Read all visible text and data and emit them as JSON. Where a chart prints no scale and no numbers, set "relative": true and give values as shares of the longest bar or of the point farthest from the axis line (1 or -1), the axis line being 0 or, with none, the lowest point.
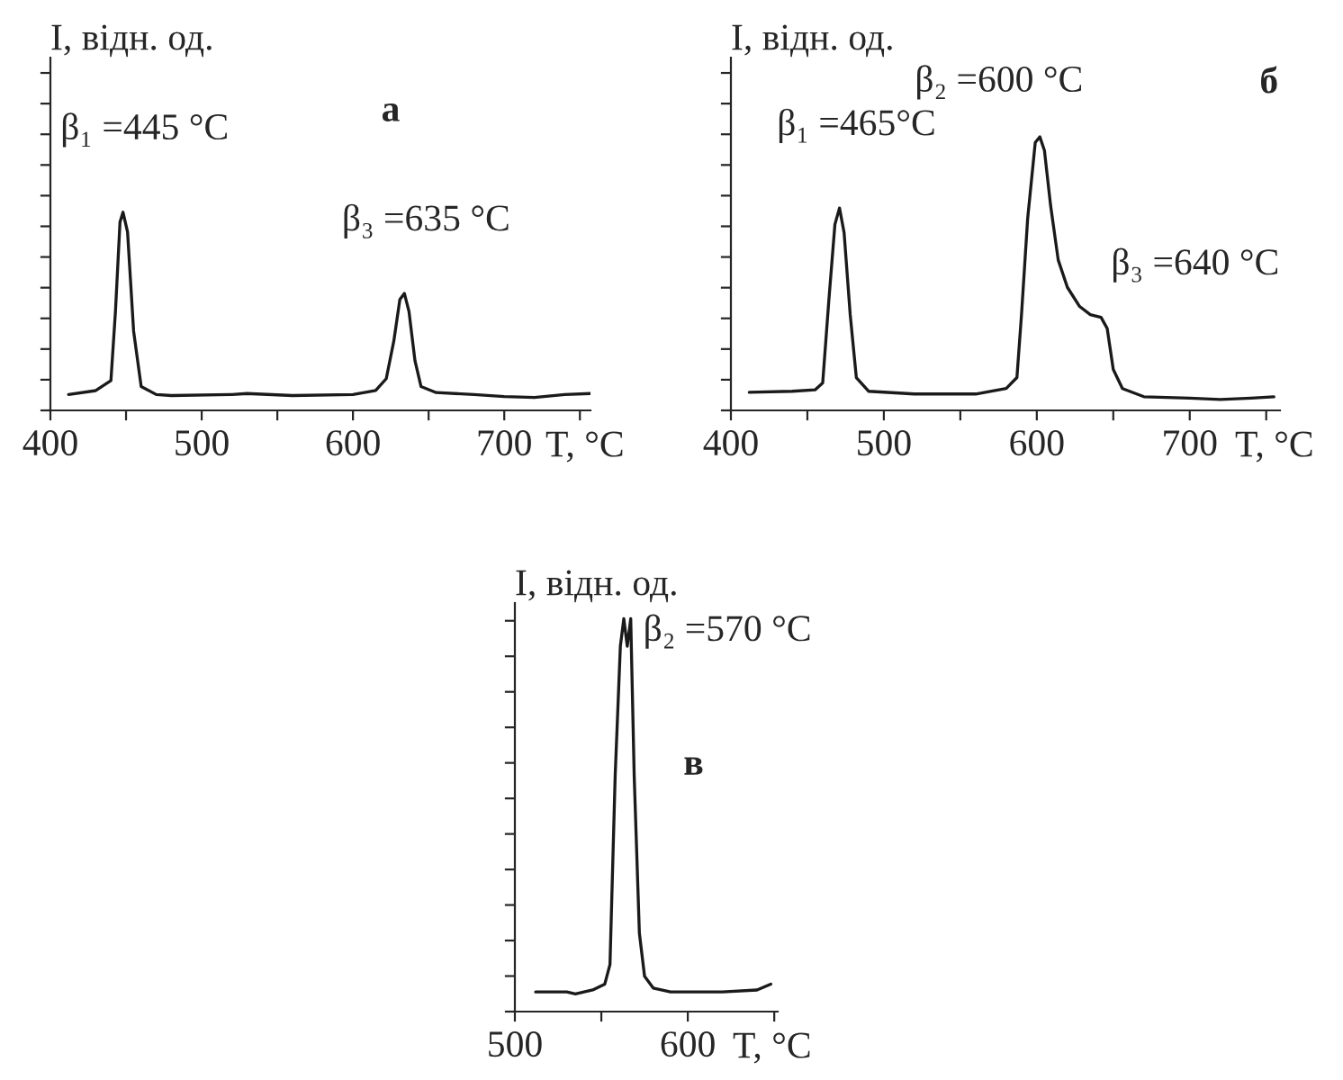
{
  "chart_data": [
    {
      "type": "line",
      "title": "а",
      "ylabel": "I, відн. од.",
      "xlabel": "T, °C",
      "relative": true,
      "xlim": [
        400,
        757
      ],
      "xticks": [
        400,
        {
          "value": 450,
          "label": null
        },
        500,
        {
          "value": 550,
          "label": null
        },
        600,
        {
          "value": 650,
          "label": null
        },
        700,
        {
          "value": 750,
          "label": null
        }
      ],
      "grid": false,
      "legend": false,
      "series": [
        {
          "color": "#1a1a1a",
          "x": [
            412,
            430,
            440,
            443,
            446,
            448,
            451,
            455,
            460,
            470,
            480,
            520,
            530,
            560,
            600,
            615,
            622,
            627,
            631,
            634,
            637,
            641,
            645,
            655,
            680,
            700,
            720,
            740,
            757
          ],
          "values": [
            0.08,
            0.1,
            0.15,
            0.5,
            0.95,
            1.0,
            0.9,
            0.4,
            0.12,
            0.08,
            0.075,
            0.08,
            0.085,
            0.075,
            0.08,
            0.1,
            0.16,
            0.35,
            0.56,
            0.59,
            0.5,
            0.25,
            0.12,
            0.09,
            0.08,
            0.07,
            0.065,
            0.08,
            0.085
          ]
        }
      ],
      "annotations": [
        {
          "text": "β₁ =445 °C",
          "x": 448,
          "y": 1.0
        },
        {
          "text": "β₃ =635 °C",
          "x": 634,
          "y": 0.59
        }
      ]
    },
    {
      "type": "line",
      "title": "б",
      "ylabel": "I, відн. од.",
      "xlabel": "T, °C",
      "relative": true,
      "xlim": [
        400,
        759
      ],
      "xticks": [
        400,
        {
          "value": 450,
          "label": null
        },
        500,
        {
          "value": 550,
          "label": null
        },
        600,
        {
          "value": 650,
          "label": null
        },
        700,
        {
          "value": 750,
          "label": null
        }
      ],
      "grid": false,
      "legend": false,
      "series": [
        {
          "color": "#1a1a1a",
          "x": [
            412,
            440,
            455,
            460,
            464,
            468,
            471,
            474,
            478,
            482,
            490,
            520,
            560,
            580,
            587,
            590,
            594,
            599,
            602,
            605,
            609,
            614,
            620,
            628,
            635,
            642,
            646,
            650,
            656,
            670,
            700,
            720,
            740,
            755
          ],
          "values": [
            0.066,
            0.07,
            0.075,
            0.1,
            0.4,
            0.68,
            0.74,
            0.65,
            0.35,
            0.12,
            0.07,
            0.06,
            0.06,
            0.08,
            0.12,
            0.35,
            0.7,
            0.98,
            1.0,
            0.95,
            0.75,
            0.55,
            0.45,
            0.38,
            0.35,
            0.34,
            0.3,
            0.15,
            0.08,
            0.05,
            0.045,
            0.04,
            0.045,
            0.05
          ]
        }
      ],
      "annotations": [
        {
          "text": "β₁ =465°C",
          "x": 471,
          "y": 0.74
        },
        {
          "text": "β₂ =600 °C",
          "x": 602,
          "y": 1.0
        },
        {
          "text": "β₃ =640 °C",
          "x": 642,
          "y": 0.34
        }
      ]
    },
    {
      "type": "line",
      "title": "в",
      "ylabel": "I, відн. од.",
      "xlabel": "T, °C",
      "relative": true,
      "xlim": [
        500,
        652
      ],
      "xticks": [
        500,
        {
          "value": 550,
          "label": null
        },
        600,
        {
          "value": 650,
          "label": null
        }
      ],
      "grid": false,
      "legend": false,
      "series": [
        {
          "color": "#1a1a1a",
          "x": [
            512,
            530,
            535,
            545,
            552,
            555,
            558,
            561,
            563,
            565,
            567,
            569,
            572,
            575,
            580,
            590,
            620,
            640,
            648
          ],
          "values": [
            0.05,
            0.05,
            0.045,
            0.055,
            0.07,
            0.12,
            0.6,
            0.93,
            1.0,
            0.93,
            1.0,
            0.6,
            0.2,
            0.09,
            0.06,
            0.05,
            0.05,
            0.055,
            0.07
          ]
        }
      ],
      "annotations": [
        {
          "text": "β₂ =570 °C",
          "x": 567,
          "y": 1.0
        }
      ]
    }
  ]
}
